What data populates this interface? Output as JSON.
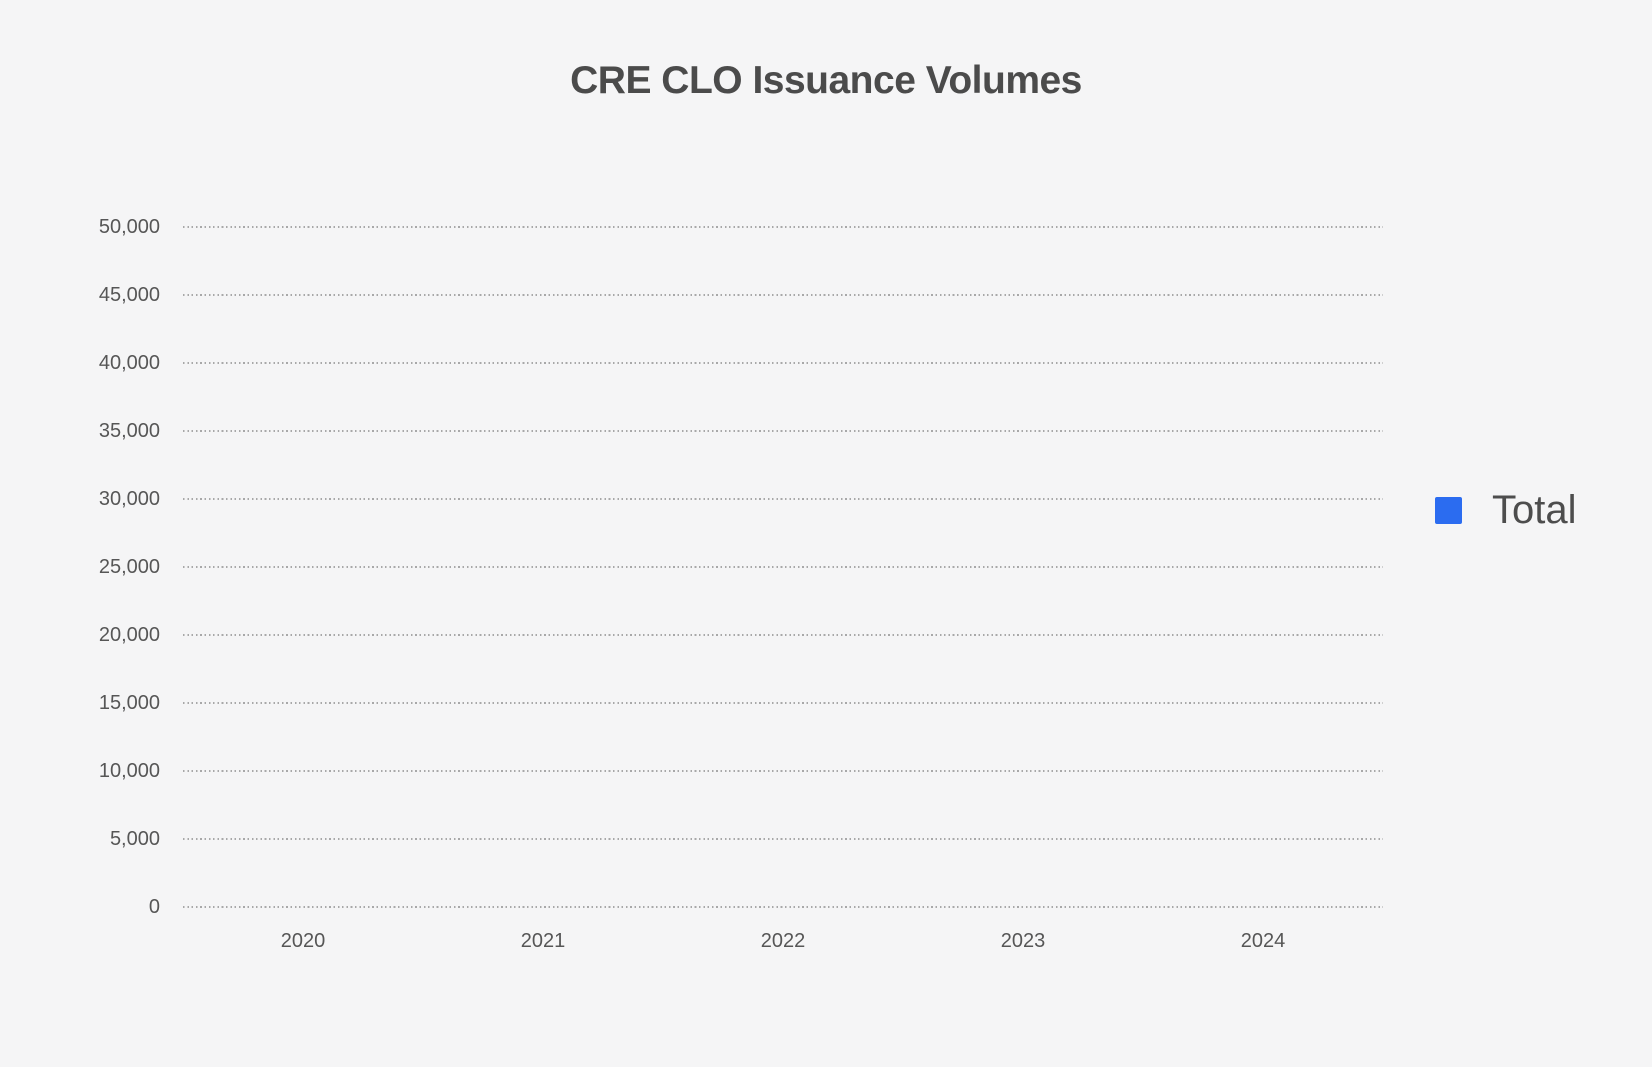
{
  "title": "CRE CLO Issuance Volumes",
  "legend": {
    "position": "right",
    "items": [
      {
        "label": "Total",
        "color": "#2b6cf0"
      }
    ]
  },
  "chart_data": {
    "type": "bar",
    "title": "CRE CLO Issuance Volumes",
    "categories": [
      "2020",
      "2021",
      "2022",
      "2023",
      "2024"
    ],
    "series": [
      {
        "name": "Total",
        "color": "#2b6cf0",
        "values": [
          null,
          null,
          null,
          null,
          null
        ]
      }
    ],
    "xlabel": "",
    "ylabel": "",
    "ylim": [
      0,
      50000
    ],
    "yticks": [
      0,
      5000,
      10000,
      15000,
      20000,
      25000,
      30000,
      35000,
      40000,
      45000,
      50000
    ],
    "ytick_labels": [
      "0",
      "5,000",
      "10,000",
      "15,000",
      "20,000",
      "25,000",
      "30,000",
      "35,000",
      "40,000",
      "45,000",
      "50,000"
    ],
    "grid": "dotted-horizontal",
    "legend_position": "right"
  }
}
